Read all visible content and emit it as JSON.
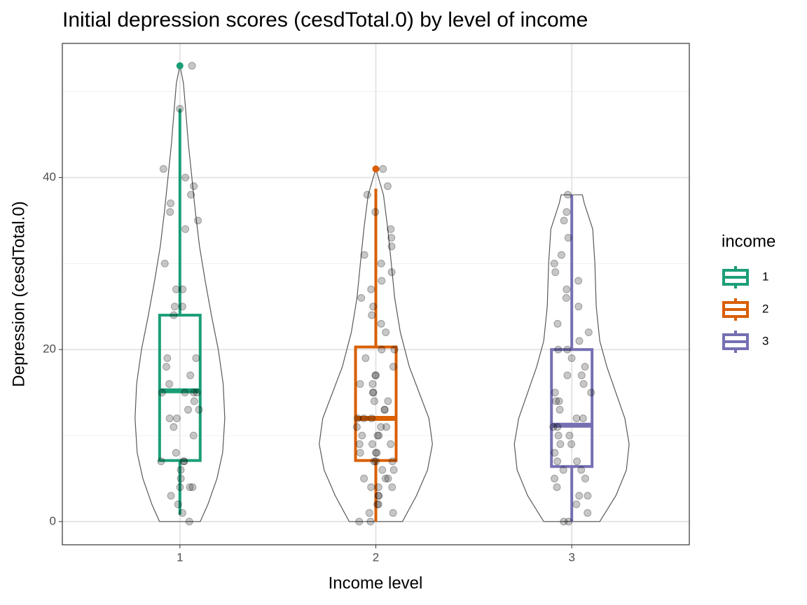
{
  "chart_data": {
    "type": "violin-box",
    "title": "Initial depression scores (cesdTotal.0) by level of income",
    "x_label": "Income level",
    "y_label": "Depression (cesdTotal.0)",
    "categories": [
      "1",
      "2",
      "3"
    ],
    "xlim": [
      0.4,
      3.6
    ],
    "ylim": [
      -2.7,
      55.6
    ],
    "yticks": [
      0,
      20,
      40
    ],
    "yminor": [
      10,
      30,
      50
    ],
    "grid": true,
    "legend": {
      "title": "income",
      "position": "right"
    },
    "series": [
      {
        "name": "1",
        "color": "#1b9e77",
        "box": {
          "whisker_low": 0.8,
          "q1": 7.1,
          "median": 15.2,
          "q3": 24,
          "whisker_high": 48
        },
        "outliers": [
          53
        ],
        "points": [
          0,
          1,
          2,
          3,
          4,
          4,
          4,
          5,
          6,
          7,
          7,
          7,
          8,
          10,
          11,
          12,
          12,
          13,
          13,
          14,
          15,
          15,
          15,
          15,
          16,
          17,
          18,
          19,
          19,
          24,
          25,
          25,
          27,
          27,
          30,
          34,
          35,
          36,
          37,
          38,
          39,
          40,
          41,
          48,
          53
        ],
        "violin": {
          "y": [
            0,
            2,
            5,
            8,
            12,
            16,
            20,
            24,
            28,
            32,
            36,
            40,
            44,
            48,
            51,
            53
          ],
          "width": [
            0.104,
            0.143,
            0.189,
            0.218,
            0.229,
            0.221,
            0.196,
            0.161,
            0.129,
            0.1,
            0.079,
            0.061,
            0.043,
            0.029,
            0.018,
            0
          ]
        }
      },
      {
        "name": "2",
        "color": "#d95f02",
        "box": {
          "whisker_low": 0,
          "q1": 7.1,
          "median": 12,
          "q3": 20.3,
          "whisker_high": 38.7
        },
        "outliers": [
          41
        ],
        "points": [
          0,
          0,
          1,
          1,
          2,
          2,
          3,
          3,
          4,
          4,
          4,
          5,
          5,
          5,
          6,
          6,
          7,
          7,
          7,
          8,
          8,
          8,
          9,
          9,
          9,
          10,
          10,
          10,
          11,
          11,
          11,
          12,
          12,
          12,
          13,
          13,
          14,
          14,
          15,
          15,
          16,
          16,
          17,
          17,
          18,
          19,
          20,
          20,
          22,
          23,
          24,
          25,
          26,
          27,
          28,
          29,
          30,
          31,
          32,
          33,
          34,
          36,
          38,
          39,
          41
        ],
        "violin": {
          "y": [
            0,
            3,
            6,
            9,
            12,
            15,
            18,
            22,
            26,
            30,
            34,
            38,
            41
          ],
          "width": [
            0.136,
            0.207,
            0.264,
            0.289,
            0.271,
            0.221,
            0.171,
            0.125,
            0.096,
            0.079,
            0.061,
            0.039,
            0
          ]
        }
      },
      {
        "name": "3",
        "color": "#7570b3",
        "box": {
          "whisker_low": 0,
          "q1": 6.4,
          "median": 11.2,
          "q3": 20,
          "whisker_high": 38
        },
        "outliers": [],
        "points": [
          0,
          0,
          1,
          2,
          3,
          3,
          4,
          5,
          5,
          6,
          6,
          7,
          7,
          8,
          9,
          9,
          10,
          10,
          11,
          11,
          12,
          12,
          13,
          14,
          14,
          15,
          15,
          16,
          17,
          17,
          18,
          19,
          20,
          20,
          21,
          22,
          23,
          25,
          26,
          27,
          28,
          29,
          30,
          31,
          33,
          35,
          36,
          38
        ],
        "violin": {
          "y": [
            0,
            3,
            6,
            9,
            12,
            15,
            18,
            21,
            25,
            30,
            34,
            37,
            38
          ],
          "width": [
            0.143,
            0.225,
            0.279,
            0.293,
            0.271,
            0.225,
            0.179,
            0.143,
            0.125,
            0.118,
            0.107,
            0.064,
            0.054
          ]
        }
      }
    ]
  }
}
